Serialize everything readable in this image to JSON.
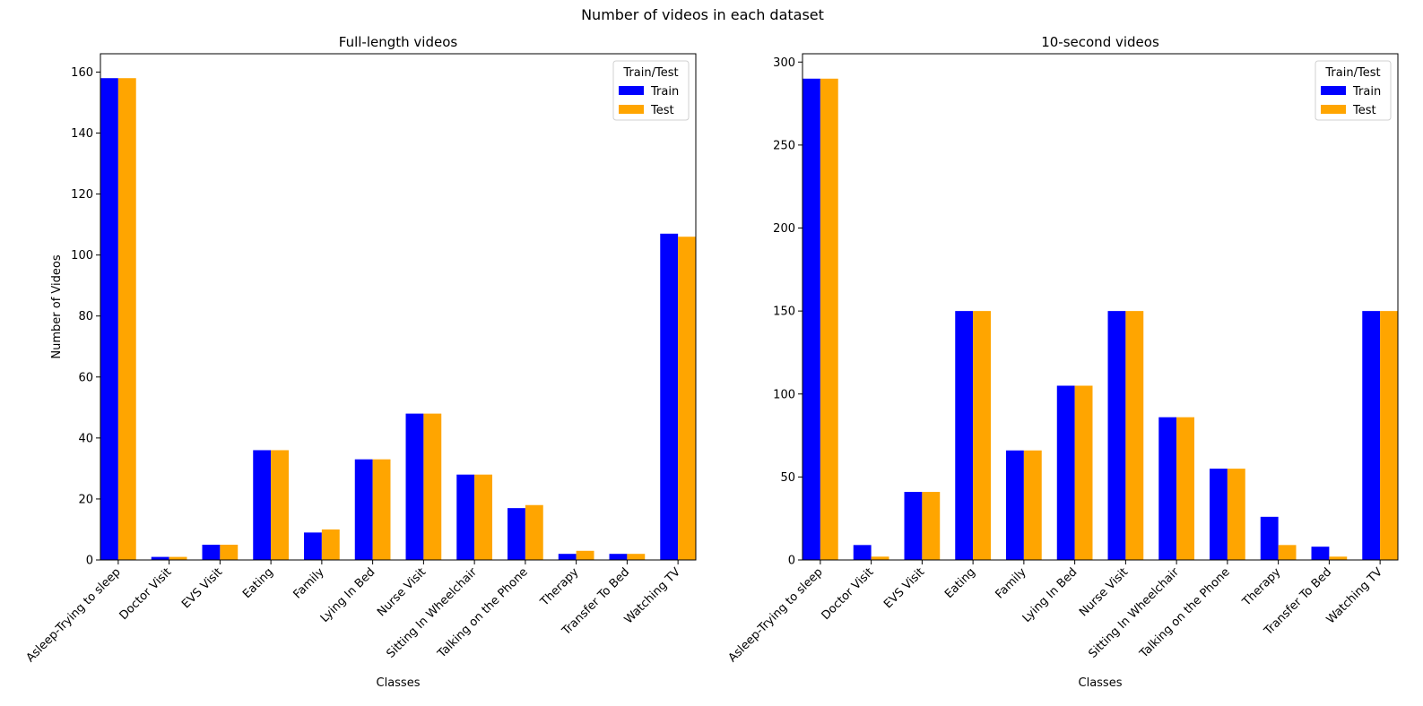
{
  "figure_title": "Number of videos in each dataset",
  "colors": {
    "train": "#0000ff",
    "test": "#ffa500"
  },
  "chart_data": [
    {
      "type": "bar",
      "title": "Full-length videos",
      "xlabel": "Classes",
      "ylabel": "Number of Videos",
      "ylim": [
        0,
        166
      ],
      "yticks": [
        0,
        20,
        40,
        60,
        80,
        100,
        120,
        140,
        160
      ],
      "legend": {
        "title": "Train/Test",
        "placement": "top-right"
      },
      "categories": [
        "Asleep-Trying to sleep",
        "Doctor Visit",
        "EVS Visit",
        "Eating",
        "Family",
        "Lying In Bed",
        "Nurse Visit",
        "Sitting In Wheelchair",
        "Talking on the Phone",
        "Therapy",
        "Transfer To Bed",
        "Watching TV"
      ],
      "series": [
        {
          "name": "Train",
          "values": [
            158,
            1,
            5,
            36,
            9,
            33,
            48,
            28,
            17,
            2,
            2,
            107
          ]
        },
        {
          "name": "Test",
          "values": [
            158,
            1,
            5,
            36,
            10,
            33,
            48,
            28,
            18,
            3,
            2,
            106
          ]
        }
      ]
    },
    {
      "type": "bar",
      "title": "10-second videos",
      "xlabel": "Classes",
      "ylabel": "",
      "ylim": [
        0,
        305
      ],
      "yticks": [
        0,
        50,
        100,
        150,
        200,
        250,
        300
      ],
      "legend": {
        "title": "Train/Test",
        "placement": "top-right"
      },
      "categories": [
        "Asleep-Trying to sleep",
        "Doctor Visit",
        "EVS Visit",
        "Eating",
        "Family",
        "Lying In Bed",
        "Nurse Visit",
        "Sitting In Wheelchair",
        "Talking on the Phone",
        "Therapy",
        "Transfer To Bed",
        "Watching TV"
      ],
      "series": [
        {
          "name": "Train",
          "values": [
            290,
            9,
            41,
            150,
            66,
            105,
            150,
            86,
            55,
            26,
            8,
            150
          ]
        },
        {
          "name": "Test",
          "values": [
            290,
            2,
            41,
            150,
            66,
            105,
            150,
            86,
            55,
            9,
            2,
            150
          ]
        }
      ]
    }
  ]
}
